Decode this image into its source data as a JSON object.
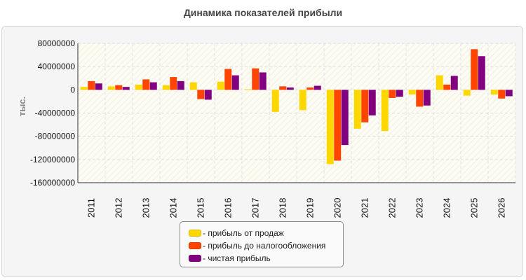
{
  "title": "Динамика показателей прибыли",
  "colors": {
    "profit_sales": "#ffd700",
    "profit_before_tax": "#ff4500",
    "net_profit": "#800080"
  },
  "legend": {
    "items": [
      {
        "label": "- прибыль от продаж",
        "color": "#ffd700"
      },
      {
        "label": "- прибыль до налогообложения",
        "color": "#ff4500"
      },
      {
        "label": "- чистая прибыль",
        "color": "#800080"
      }
    ]
  },
  "chart_data": {
    "type": "bar",
    "title": "Динамика показателей прибыли",
    "xlabel": "",
    "ylabel": "тыс.",
    "ylim": [
      -160000000,
      80000000
    ],
    "yticks": [
      80000000,
      40000000,
      0,
      -40000000,
      -80000000,
      -120000000,
      -160000000
    ],
    "ytick_labels": [
      "80000000",
      "40000000",
      "0",
      "-40000000",
      "-80000000",
      "-120000000",
      "-160000000"
    ],
    "grid": true,
    "legend_position": "bottom",
    "categories": [
      "2011",
      "2012",
      "2013",
      "2014",
      "2015",
      "2016",
      "2017",
      "2018",
      "2019",
      "2020",
      "2021",
      "2022",
      "2023",
      "2024",
      "2025",
      "2026"
    ],
    "series": [
      {
        "name": "- прибыль от продаж",
        "color": "#ffd700",
        "values": [
          5000000,
          6000000,
          9000000,
          8000000,
          13000000,
          14000000,
          1000000,
          -38000000,
          -35000000,
          -128000000,
          -67000000,
          -71000000,
          -8000000,
          25000000,
          -10000000,
          -8000000
        ]
      },
      {
        "name": "- прибыль до налогообложения",
        "color": "#ff4500",
        "values": [
          15000000,
          8000000,
          18000000,
          22000000,
          -16000000,
          36000000,
          37000000,
          6000000,
          4000000,
          -122000000,
          -56000000,
          -14000000,
          -29000000,
          9000000,
          70000000,
          -15000000
        ]
      },
      {
        "name": "- чистая прибыль",
        "color": "#800080",
        "values": [
          11000000,
          5000000,
          13000000,
          15000000,
          -17000000,
          25000000,
          30000000,
          4000000,
          7000000,
          -95000000,
          -44000000,
          -12000000,
          -27000000,
          24000000,
          58000000,
          -11000000
        ]
      }
    ]
  }
}
